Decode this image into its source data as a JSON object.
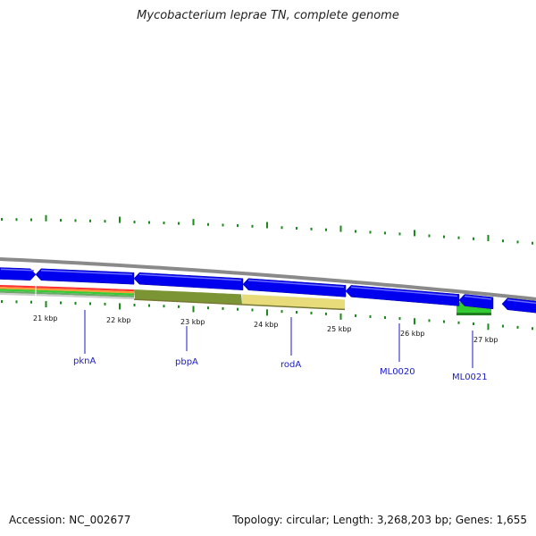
{
  "title": "Mycobacterium leprae TN, complete genome",
  "footer": {
    "accession": "Accession: NC_002677",
    "topology": "Topology: circular; Length: 3,268,203 bp; Genes: 1,655"
  },
  "colors": {
    "gene": "#0000ee",
    "scale_tick": "#1a8a1a",
    "backbone": "#8a8a8a",
    "label": "#1a1acc",
    "highlight_olive": "#6e8a1e",
    "highlight_yellow": "#e8dc7a",
    "highlight_green": "#33cc33"
  },
  "scale_labels": [
    "21 kbp",
    "22 kbp",
    "23 kbp",
    "24 kbp",
    "25 kbp",
    "26 kbp",
    "27 kbp"
  ],
  "genes": [
    {
      "name": "pknA"
    },
    {
      "name": "pbpA"
    },
    {
      "name": "rodA"
    },
    {
      "name": "ML0020"
    },
    {
      "name": "ML0021"
    }
  ]
}
